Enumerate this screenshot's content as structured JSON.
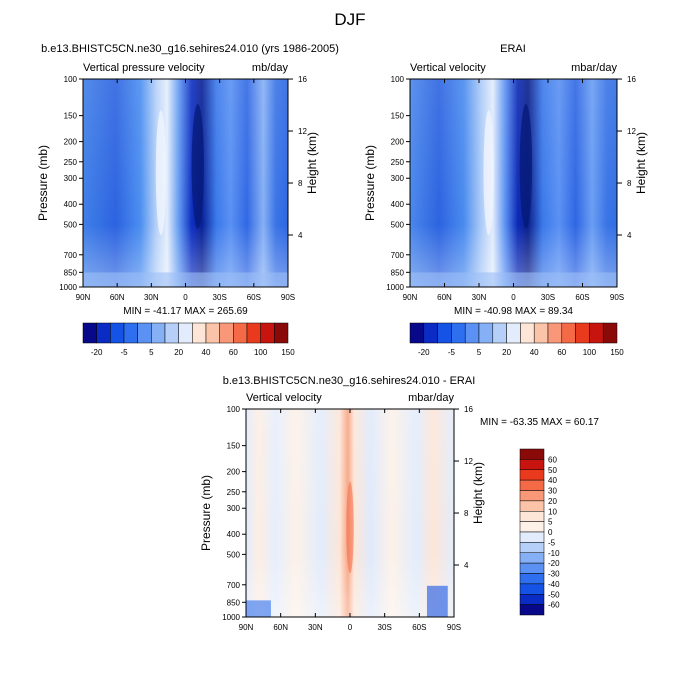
{
  "title": "DJF",
  "chart_data": [
    {
      "type": "heatmap",
      "title": "b.e13.BHISTC5CN.ne30_g16.sehires24.010 (yrs 1986-2005)",
      "left_label": "Vertical pressure velocity",
      "right_label": "mb/day",
      "xlabel": "",
      "ylabel": "Pressure (mb)",
      "y2label": "Height (km)",
      "x_ticks": [
        "90N",
        "60N",
        "30N",
        "0",
        "30S",
        "60S",
        "90S"
      ],
      "y_ticks": [
        "100",
        "150",
        "200",
        "250",
        "300",
        "400",
        "500",
        "700",
        "850",
        "1000"
      ],
      "y2_ticks": [
        "16",
        "12",
        "8",
        "4"
      ],
      "stats": "MIN = -41.17   MAX = 265.69",
      "colorbar_labels": [
        "-20",
        "-5",
        "5",
        "20",
        "40",
        "60",
        "100",
        "150"
      ],
      "colorbar_colors": [
        "#08088a",
        "#0a2bc4",
        "#1453e6",
        "#2e6fef",
        "#5a91f3",
        "#86b0f5",
        "#b5cff8",
        "#e2ecfc",
        "#fde6d8",
        "#fbc4a8",
        "#f89878",
        "#f46a47",
        "#ea3a1e",
        "#c8140e",
        "#8a0a0a"
      ],
      "min": -41.17,
      "max": 265.69
    },
    {
      "type": "heatmap",
      "title": "ERAI",
      "left_label": "Vertical velocity",
      "right_label": "mbar/day",
      "xlabel": "",
      "ylabel": "Pressure (mb)",
      "y2label": "Height (km)",
      "x_ticks": [
        "90N",
        "60N",
        "30N",
        "0",
        "30S",
        "60S",
        "90S"
      ],
      "y_ticks": [
        "100",
        "150",
        "200",
        "250",
        "300",
        "400",
        "500",
        "700",
        "850",
        "1000"
      ],
      "y2_ticks": [
        "16",
        "12",
        "8",
        "4"
      ],
      "stats": "MIN = -40.98   MAX =  89.34",
      "colorbar_labels": [
        "-20",
        "-5",
        "5",
        "20",
        "40",
        "60",
        "100",
        "150"
      ],
      "colorbar_colors": [
        "#08088a",
        "#0a2bc4",
        "#1453e6",
        "#2e6fef",
        "#5a91f3",
        "#86b0f5",
        "#b5cff8",
        "#e2ecfc",
        "#fde6d8",
        "#fbc4a8",
        "#f89878",
        "#f46a47",
        "#ea3a1e",
        "#c8140e",
        "#8a0a0a"
      ],
      "min": -40.98,
      "max": 89.34
    },
    {
      "type": "heatmap",
      "title": "b.e13.BHISTC5CN.ne30_g16.sehires24.010 - ERAI",
      "left_label": "Vertical velocity",
      "right_label": "mbar/day",
      "xlabel": "",
      "ylabel": "Pressure (mb)",
      "y2label": "Height (km)",
      "x_ticks": [
        "90N",
        "60N",
        "30N",
        "0",
        "30S",
        "60S",
        "90S"
      ],
      "y_ticks": [
        "100",
        "150",
        "200",
        "250",
        "300",
        "400",
        "500",
        "700",
        "850",
        "1000"
      ],
      "y2_ticks": [
        "16",
        "12",
        "8",
        "4"
      ],
      "stats": "MIN = -63.35  MAX =  60.17",
      "colorbar_labels": [
        "60",
        "50",
        "40",
        "30",
        "20",
        "10",
        "5",
        "0",
        "-5",
        "-10",
        "-20",
        "-30",
        "-40",
        "-50",
        "-60"
      ],
      "colorbar_colors": [
        "#8a0a0a",
        "#c8140e",
        "#ea3a1e",
        "#f46a47",
        "#f89878",
        "#fbc4a8",
        "#fde6d8",
        "#fdf1e8",
        "#e2ecfc",
        "#b5cff8",
        "#86b0f5",
        "#5a91f3",
        "#2e6fef",
        "#1453e6",
        "#0a2bc4",
        "#08088a"
      ],
      "min": -63.35,
      "max": 60.17
    }
  ]
}
